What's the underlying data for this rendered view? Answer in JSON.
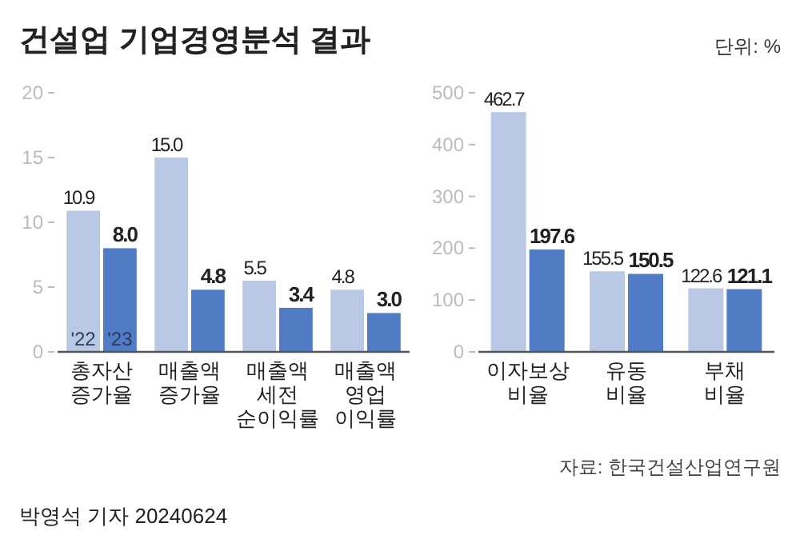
{
  "chart_data": [
    {
      "type": "bar",
      "title": "건설업 기업경영분석 결과",
      "annotations": [
        "단위: %",
        "자료: 한국건설산업연구원",
        "박영석 기자 20240624"
      ],
      "categories": [
        "총자산\n증가율",
        "매출액\n증가율",
        "매출액\n세전\n순이익률",
        "매출액\n영업\n이익률"
      ],
      "series": [
        {
          "name": "'22",
          "color": "#b9c9e5",
          "values": [
            10.9,
            15.0,
            5.5,
            4.8
          ],
          "value_labels": [
            "10.9",
            "15.0",
            "5.5",
            "4.8"
          ]
        },
        {
          "name": "'23",
          "color": "#4f7cc4",
          "values": [
            8.0,
            4.8,
            3.4,
            3.0
          ],
          "value_labels": [
            "8.0",
            "4.8",
            "3.4",
            "3.0"
          ]
        }
      ],
      "ylim": [
        0,
        20
      ],
      "yticks": [
        0,
        5,
        10,
        15,
        20
      ],
      "grid": false
    },
    {
      "type": "bar",
      "categories": [
        "이자보상\n비율",
        "유동\n비율",
        "부채\n비율"
      ],
      "series": [
        {
          "color": "#b9c9e5",
          "values": [
            462.7,
            155.5,
            122.6
          ]
        },
        {
          "color": "#4f7cc4",
          "values": [
            197.6,
            150.5,
            121.1
          ]
        }
      ],
      "ylim": [
        0,
        500
      ],
      "yticks": [
        0,
        100,
        200,
        300,
        400,
        500
      ],
      "data_labels": true,
      "grid": false
    }
  ]
}
